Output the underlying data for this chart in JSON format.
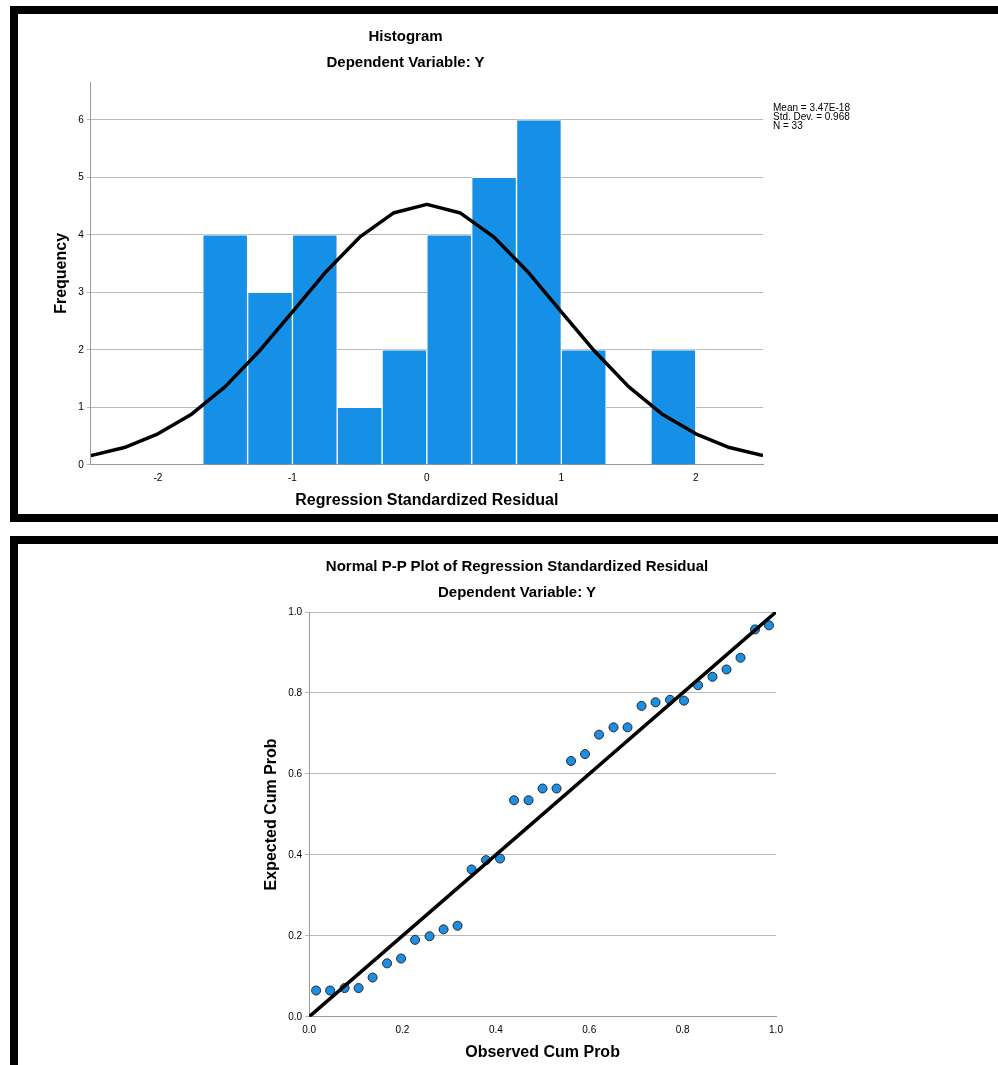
{
  "chart_data": [
    {
      "type": "histogram",
      "title": "Histogram",
      "subtitle": "Dependent Variable: Y",
      "xlabel": "Regression Standardized Residual",
      "ylabel": "Frequency",
      "bins": [
        -1.667,
        -1.333,
        -1,
        -0.667,
        -0.333,
        0,
        0.333,
        0.667,
        1,
        1.333,
        1.667,
        2
      ],
      "values": [
        4,
        3,
        4,
        1,
        2,
        4,
        5,
        6,
        2,
        0,
        2
      ],
      "color": "#1590e6",
      "series": [
        {
          "type": "line",
          "color": "#000000",
          "x": [
            -2.5,
            -2.25,
            -2,
            -1.75,
            -1.5,
            -1.25,
            -1,
            -0.75,
            -0.5,
            -0.25,
            0,
            0.25,
            0.5,
            0.75,
            1,
            1.25,
            1.5,
            1.75,
            2,
            2.25,
            2.5
          ],
          "values": [
            0.16,
            0.3,
            0.54,
            0.88,
            1.36,
            1.97,
            2.66,
            3.36,
            3.96,
            4.38,
            4.53,
            4.38,
            3.96,
            3.36,
            2.66,
            1.97,
            1.36,
            0.88,
            0.54,
            0.3,
            0.16
          ]
        }
      ],
      "xlim": [
        -2.5,
        2.5
      ],
      "xticks": [
        -2,
        -1,
        0,
        1,
        2
      ],
      "ylim": [
        0,
        6.66
      ],
      "yticks": [
        0,
        1,
        2,
        3,
        4,
        5,
        6
      ],
      "grid": "y",
      "legend": false,
      "annotations": [
        "Mean = 3.47E-18",
        "Std. Dev. = 0.968",
        "N = 33"
      ]
    },
    {
      "type": "scatter",
      "title": "Normal P-P Plot of Regression Standardized Residual",
      "subtitle": "Dependent Variable: Y",
      "xlabel": "Observed Cum Prob",
      "ylabel": "Expected Cum Prob",
      "marker": "circle",
      "series": [
        {
          "color": "#1f8ee0",
          "x": [
            0.015,
            0.045,
            0.076,
            0.106,
            0.136,
            0.167,
            0.197,
            0.227,
            0.258,
            0.288,
            0.318,
            0.348,
            0.379,
            0.409,
            0.439,
            0.47,
            0.5,
            0.53,
            0.561,
            0.591,
            0.621,
            0.652,
            0.682,
            0.712,
            0.742,
            0.773,
            0.803,
            0.833,
            0.864,
            0.894,
            0.924,
            0.955,
            0.985
          ],
          "values": [
            0.065,
            0.065,
            0.071,
            0.071,
            0.097,
            0.132,
            0.144,
            0.19,
            0.199,
            0.216,
            0.225,
            0.364,
            0.387,
            0.391,
            0.535,
            0.535,
            0.564,
            0.564,
            0.632,
            0.649,
            0.697,
            0.715,
            0.715,
            0.768,
            0.777,
            0.783,
            0.781,
            0.819,
            0.84,
            0.858,
            0.887,
            0.957,
            0.967
          ]
        },
        {
          "type": "line",
          "color": "#000000",
          "marker": "none",
          "x": [
            0,
            1
          ],
          "values": [
            0,
            1
          ]
        }
      ],
      "xlim": [
        0,
        1
      ],
      "xticks": [
        {
          "value": 0,
          "label": "0.0"
        },
        {
          "value": 0.2,
          "label": "0.2"
        },
        {
          "value": 0.4,
          "label": "0.4"
        },
        {
          "value": 0.6,
          "label": "0.6"
        },
        {
          "value": 0.8,
          "label": "0.8"
        },
        {
          "value": 1,
          "label": "1.0"
        }
      ],
      "ylim": [
        0,
        1
      ],
      "yticks": [
        {
          "value": 0,
          "label": "0.0"
        },
        {
          "value": 0.2,
          "label": "0.2"
        },
        {
          "value": 0.4,
          "label": "0.4"
        },
        {
          "value": 0.6,
          "label": "0.6"
        },
        {
          "value": 0.8,
          "label": "0.8"
        },
        {
          "value": 1,
          "label": "1.0"
        }
      ],
      "grid": "y",
      "legend": false
    }
  ]
}
